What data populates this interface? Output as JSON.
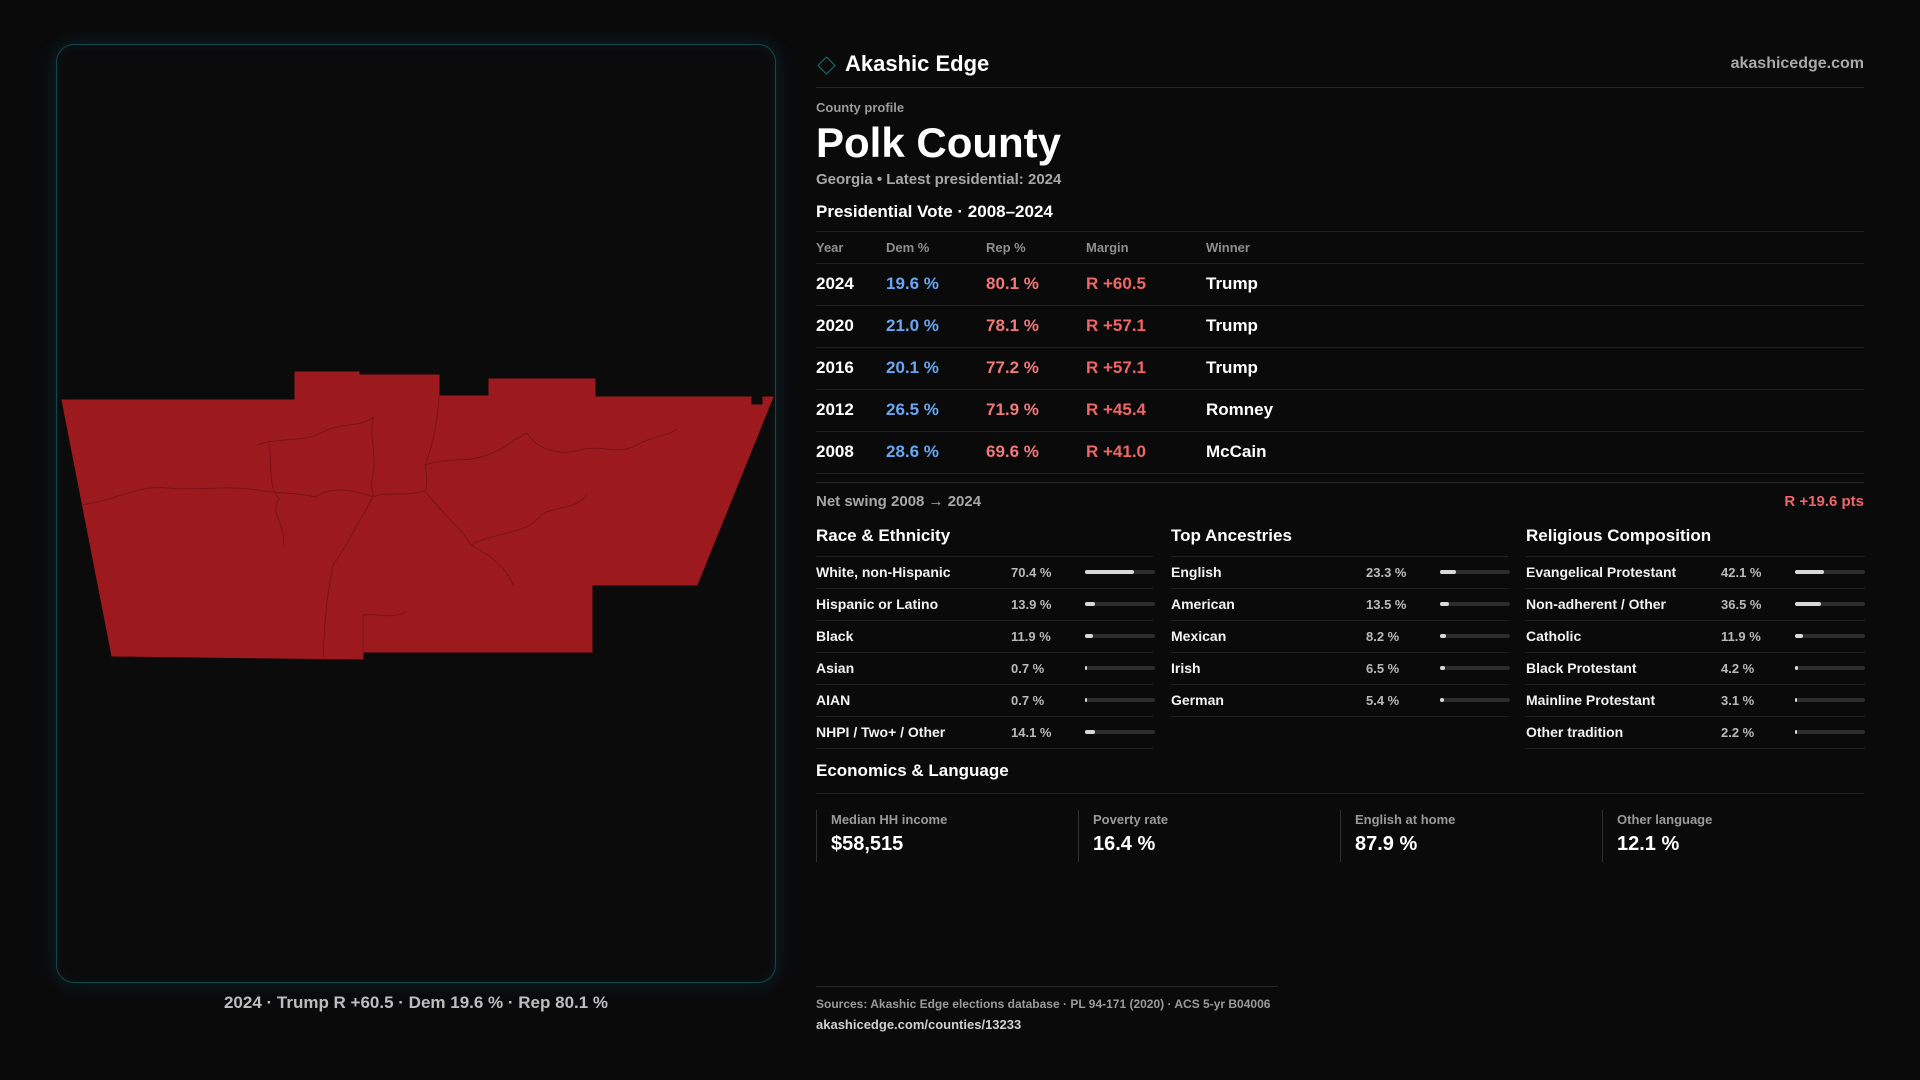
{
  "brand": {
    "name": "Akashic Edge",
    "url": "akashicedge.com"
  },
  "profile": {
    "eyebrow": "County profile",
    "title": "Polk County",
    "subtitle": "Georgia • Latest presidential: 2024"
  },
  "vote": {
    "header": "Presidential Vote · 2008–2024",
    "columns": [
      "Year",
      "Dem %",
      "Rep %",
      "Margin",
      "Winner"
    ],
    "rows": [
      {
        "year": "2024",
        "dem": "19.6 %",
        "rep": "80.1 %",
        "margin": "R +60.5",
        "winner": "Trump"
      },
      {
        "year": "2020",
        "dem": "21.0 %",
        "rep": "78.1 %",
        "margin": "R +57.1",
        "winner": "Trump"
      },
      {
        "year": "2016",
        "dem": "20.1 %",
        "rep": "77.2 %",
        "margin": "R +57.1",
        "winner": "Trump"
      },
      {
        "year": "2012",
        "dem": "26.5 %",
        "rep": "71.9 %",
        "margin": "R +45.4",
        "winner": "Romney"
      },
      {
        "year": "2008",
        "dem": "28.6 %",
        "rep": "69.6 %",
        "margin": "R +41.0",
        "winner": "McCain"
      }
    ],
    "swing_label": "Net swing 2008 → 2024",
    "swing_value": "R +19.6 pts"
  },
  "race": {
    "title": "Race & Ethnicity",
    "items": [
      {
        "label": "White, non-Hispanic",
        "value": "70.4 %",
        "pct": 70.4
      },
      {
        "label": "Hispanic or Latino",
        "value": "13.9 %",
        "pct": 13.9
      },
      {
        "label": "Black",
        "value": "11.9 %",
        "pct": 11.9
      },
      {
        "label": "Asian",
        "value": "0.7 %",
        "pct": 0.7
      },
      {
        "label": "AIAN",
        "value": "0.7 %",
        "pct": 0.7
      },
      {
        "label": "NHPI / Two+ / Other",
        "value": "14.1 %",
        "pct": 14.1
      }
    ]
  },
  "ancestry": {
    "title": "Top Ancestries",
    "items": [
      {
        "label": "English",
        "value": "23.3 %",
        "pct": 23.3
      },
      {
        "label": "American",
        "value": "13.5 %",
        "pct": 13.5
      },
      {
        "label": "Mexican",
        "value": "8.2 %",
        "pct": 8.2
      },
      {
        "label": "Irish",
        "value": "6.5 %",
        "pct": 6.5
      },
      {
        "label": "German",
        "value": "5.4 %",
        "pct": 5.4
      }
    ]
  },
  "religion": {
    "title": "Religious Composition",
    "items": [
      {
        "label": "Evangelical Protestant",
        "value": "42.1 %",
        "pct": 42.1
      },
      {
        "label": "Non-adherent / Other",
        "value": "36.5 %",
        "pct": 36.5
      },
      {
        "label": "Catholic",
        "value": "11.9 %",
        "pct": 11.9
      },
      {
        "label": "Black Protestant",
        "value": "4.2 %",
        "pct": 4.2
      },
      {
        "label": "Mainline Protestant",
        "value": "3.1 %",
        "pct": 3.1
      },
      {
        "label": "Other tradition",
        "value": "2.2 %",
        "pct": 2.2
      }
    ]
  },
  "economics": {
    "title": "Economics & Language",
    "cards": [
      {
        "label": "Median HH income",
        "value": "$58,515"
      },
      {
        "label": "Poverty rate",
        "value": "16.4 %"
      },
      {
        "label": "English at home",
        "value": "87.9 %"
      },
      {
        "label": "Other language",
        "value": "12.1 %"
      }
    ]
  },
  "map": {
    "caption": "2024 · Trump R +60.5 · Dem 19.6 % · Rep 80.1 %",
    "fill_color": "#9c1a1e",
    "border_color": "#7a1215"
  },
  "footer": {
    "sources": "Sources: Akashic Edge elections database · PL 94-171 (2020) · ACS 5-yr B04006",
    "url": "akashicedge.com/counties/13233"
  },
  "colors": {
    "dem": "#6aa6f2",
    "rep": "#f07a7a",
    "margin": "#f06666",
    "accent": "#1c6f78"
  }
}
